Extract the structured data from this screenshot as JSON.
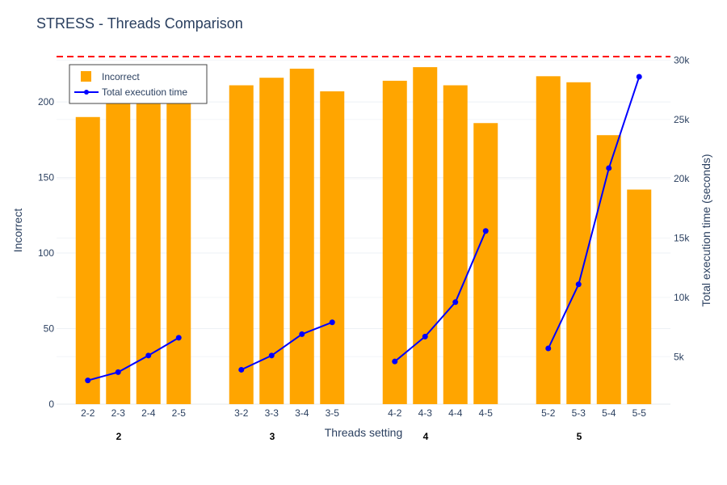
{
  "chart_data": {
    "type": "bar",
    "title": "STRESS - Threads Comparison",
    "xlabel": "Threads setting",
    "ylabel": "Incorrect",
    "y2label": "Total execution time (seconds)",
    "ylim": [
      0,
      230
    ],
    "y2lim": [
      1000,
      30300
    ],
    "yticks": [
      0,
      50,
      100,
      150,
      200
    ],
    "y2ticks": [
      5000,
      10000,
      15000,
      20000,
      25000,
      30000
    ],
    "y2tick_labels": [
      "5k",
      "10k",
      "15k",
      "20k",
      "25k",
      "30k"
    ],
    "categories": [
      "2-2",
      "2-3",
      "2-4",
      "2-5",
      "3-2",
      "3-3",
      "3-4",
      "3-5",
      "4-2",
      "4-3",
      "4-4",
      "4-5",
      "5-2",
      "5-3",
      "5-4",
      "5-5"
    ],
    "groups": [
      {
        "label": "2",
        "categories": [
          "2-2",
          "2-3",
          "2-4",
          "2-5"
        ]
      },
      {
        "label": "3",
        "categories": [
          "3-2",
          "3-3",
          "3-4",
          "3-5"
        ]
      },
      {
        "label": "4",
        "categories": [
          "4-2",
          "4-3",
          "4-4",
          "4-5"
        ]
      },
      {
        "label": "5",
        "categories": [
          "5-2",
          "5-3",
          "5-4",
          "5-5"
        ]
      }
    ],
    "series": [
      {
        "name": "Incorrect",
        "kind": "bar",
        "axis": "left",
        "color": "#FFA500",
        "values": [
          190,
          207,
          213,
          212,
          211,
          216,
          222,
          207,
          214,
          223,
          211,
          186,
          217,
          213,
          178,
          142
        ]
      },
      {
        "name": "Total execution time",
        "kind": "line",
        "axis": "right",
        "color": "#0000FF",
        "values": [
          3000,
          3700,
          5100,
          6600,
          3900,
          5100,
          6900,
          7900,
          4600,
          6700,
          9600,
          15600,
          5700,
          11100,
          20900,
          28600
        ]
      }
    ],
    "reference_line": {
      "axis": "right",
      "value": 30300,
      "color": "#FF0000",
      "style": "dashed"
    },
    "grid": true,
    "legend_position": "top-left"
  }
}
